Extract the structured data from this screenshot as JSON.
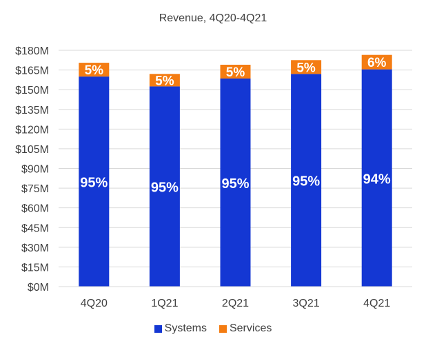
{
  "chart_data": {
    "type": "bar",
    "stacked": true,
    "title": "Revenue, 4Q20-4Q21",
    "categories": [
      "4Q20",
      "1Q21",
      "2Q21",
      "3Q21",
      "4Q21"
    ],
    "series": [
      {
        "name": "Systems",
        "color": "#1437d3",
        "values": [
          160,
          152.5,
          158.5,
          162,
          165.5
        ],
        "labels": [
          "95%",
          "95%",
          "95%",
          "95%",
          "94%"
        ]
      },
      {
        "name": "Services",
        "color": "#f47c12",
        "values": [
          10.5,
          9.5,
          10.5,
          10.5,
          11
        ],
        "labels": [
          "5%",
          "5%",
          "5%",
          "5%",
          "6%"
        ]
      }
    ],
    "ylim": [
      0,
      180
    ],
    "yticks": [
      0,
      15,
      30,
      45,
      60,
      75,
      90,
      105,
      120,
      135,
      150,
      165,
      180
    ],
    "ytick_labels": [
      "$0M",
      "$15M",
      "$30M",
      "$45M",
      "$60M",
      "$75M",
      "$90M",
      "$105M",
      "$120M",
      "$135M",
      "$150M",
      "$165M",
      "$180M"
    ],
    "xlabel": "",
    "ylabel": "",
    "grid": true,
    "legend_position": "bottom"
  }
}
